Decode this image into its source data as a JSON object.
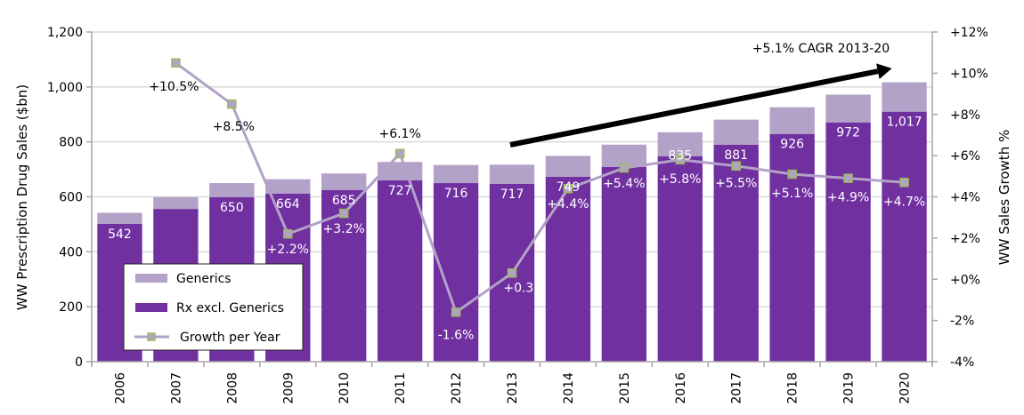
{
  "chart_data": {
    "type": "bar",
    "subtype": "stacked-bar-with-line",
    "title": "",
    "categories": [
      "2006",
      "2007",
      "2008",
      "2009",
      "2010",
      "2011",
      "2012",
      "2013",
      "2014",
      "2015",
      "2016",
      "2017",
      "2018",
      "2019",
      "2020"
    ],
    "series": [
      {
        "name": "Rx excl. Generics",
        "type": "bar",
        "axis": "left",
        "color": "#7030A0",
        "values": [
          502,
          556,
          599,
          612,
          625,
          660,
          650,
          647,
          673,
          709,
          748,
          790,
          829,
          871,
          910
        ]
      },
      {
        "name": "Generics",
        "type": "bar",
        "axis": "left",
        "color": "#B3A2C7",
        "values": [
          40,
          43,
          51,
          52,
          60,
          67,
          66,
          70,
          76,
          81,
          87,
          91,
          97,
          101,
          107
        ]
      },
      {
        "name": "Growth per Year",
        "type": "line",
        "axis": "right",
        "color": "#B3A2C7",
        "marker_color": "#9BBB59",
        "values": [
          null,
          10.5,
          8.5,
          2.2,
          3.2,
          6.1,
          -1.6,
          0.3,
          4.4,
          5.4,
          5.8,
          5.5,
          5.1,
          4.9,
          4.7
        ]
      }
    ],
    "totals": [
      542,
      599,
      650,
      664,
      685,
      727,
      716,
      717,
      749,
      790,
      835,
      881,
      926,
      972,
      1017
    ],
    "total_labels": [
      "542",
      "",
      "650",
      "664",
      "685",
      "727",
      "716",
      "717",
      "749",
      "",
      "835",
      "881",
      "926",
      "972",
      "1,017"
    ],
    "growth_labels": [
      "",
      "+10.5%",
      "+8.5%",
      "+2.2%",
      "+3.2%",
      "+6.1%",
      "-1.6%",
      "+0.3%",
      "+4.4%",
      "+5.4%",
      "+5.8%",
      "+5.5%",
      "+5.1%",
      "+4.9%",
      "+4.7%"
    ],
    "xlabel": "",
    "ylabel": "WW Prescription Drug Sales ($bn)",
    "y2label": "WW Sales Growth %",
    "ylim": [
      0,
      1200
    ],
    "y2lim": [
      -4,
      12
    ],
    "yticks": [
      "0",
      "200",
      "400",
      "600",
      "800",
      "1,000",
      "1,200"
    ],
    "y2ticks": [
      "-4%",
      "-2%",
      "+0%",
      "+2%",
      "+4%",
      "+6%",
      "+8%",
      "+10%",
      "+12%"
    ],
    "grid": true,
    "legend": {
      "position": "bottom-left",
      "entries": [
        "Generics",
        "Rx excl. Generics",
        "Growth per Year"
      ]
    },
    "annotation": {
      "text": "+5.1% CAGR 2013-20",
      "arrow_from_category": "2013",
      "arrow_to_category": "2020"
    }
  }
}
